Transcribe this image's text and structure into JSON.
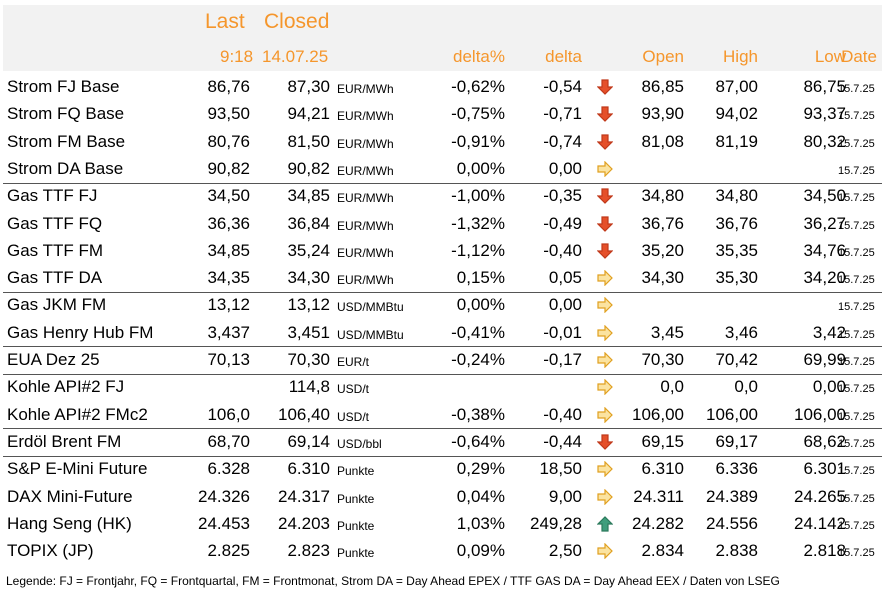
{
  "header": {
    "top": {
      "last": "Last",
      "closed": "Closed"
    },
    "columns": {
      "last": "9:18",
      "closed": "14.07.25",
      "delta_pct": "delta%",
      "delta": "delta",
      "open": "Open",
      "high": "High",
      "low": "Low",
      "date": "Date"
    }
  },
  "groups": [
    [
      {
        "name": "Strom FJ Base",
        "last": "86,76",
        "closed": "87,30",
        "unit": "EUR/MWh",
        "delta_pct": "-0,62%",
        "delta": "-0,54",
        "arrow": "down",
        "open": "86,85",
        "high": "87,00",
        "low": "86,75",
        "date": "15.7.25"
      },
      {
        "name": "Strom FQ Base",
        "last": "93,50",
        "closed": "94,21",
        "unit": "EUR/MWh",
        "delta_pct": "-0,75%",
        "delta": "-0,71",
        "arrow": "down",
        "open": "93,90",
        "high": "94,02",
        "low": "93,37",
        "date": "15.7.25"
      },
      {
        "name": "Strom FM Base",
        "last": "80,76",
        "closed": "81,50",
        "unit": "EUR/MWh",
        "delta_pct": "-0,91%",
        "delta": "-0,74",
        "arrow": "down",
        "open": "81,08",
        "high": "81,19",
        "low": "80,32",
        "date": "15.7.25"
      },
      {
        "name": "Strom DA Base",
        "last": "90,82",
        "closed": "90,82",
        "unit": "EUR/MWh",
        "delta_pct": "0,00%",
        "delta": "0,00",
        "arrow": "right",
        "open": null,
        "high": null,
        "low": null,
        "date": "15.7.25"
      }
    ],
    [
      {
        "name": "Gas TTF FJ",
        "last": "34,50",
        "closed": "34,85",
        "unit": "EUR/MWh",
        "delta_pct": "-1,00%",
        "delta": "-0,35",
        "arrow": "down",
        "open": "34,80",
        "high": "34,80",
        "low": "34,50",
        "date": "15.7.25"
      },
      {
        "name": "Gas TTF FQ",
        "last": "36,36",
        "closed": "36,84",
        "unit": "EUR/MWh",
        "delta_pct": "-1,32%",
        "delta": "-0,49",
        "arrow": "down",
        "open": "36,76",
        "high": "36,76",
        "low": "36,27",
        "date": "15.7.25"
      },
      {
        "name": "Gas TTF FM",
        "last": "34,85",
        "closed": "35,24",
        "unit": "EUR/MWh",
        "delta_pct": "-1,12%",
        "delta": "-0,40",
        "arrow": "down",
        "open": "35,20",
        "high": "35,35",
        "low": "34,76",
        "date": "15.7.25"
      },
      {
        "name": "Gas TTF DA",
        "last": "34,35",
        "closed": "34,30",
        "unit": "EUR/MWh",
        "delta_pct": "0,15%",
        "delta": "0,05",
        "arrow": "right",
        "open": "34,30",
        "high": "35,30",
        "low": "34,20",
        "date": "15.7.25"
      }
    ],
    [
      {
        "name": "Gas JKM FM",
        "last": "13,12",
        "closed": "13,12",
        "unit": "USD/MMBtu",
        "delta_pct": "0,00%",
        "delta": "0,00",
        "arrow": "right",
        "open": null,
        "high": null,
        "low": null,
        "date": "15.7.25"
      },
      {
        "name": "Gas Henry Hub FM",
        "last": "3,437",
        "closed": "3,451",
        "unit": "USD/MMBtu",
        "delta_pct": "-0,41%",
        "delta": "-0,01",
        "arrow": "right",
        "open": "3,45",
        "high": "3,46",
        "low": "3,42",
        "date": "15.7.25"
      }
    ],
    [
      {
        "name": "EUA Dez 25",
        "last": "70,13",
        "closed": "70,30",
        "unit": "EUR/t",
        "delta_pct": "-0,24%",
        "delta": "-0,17",
        "arrow": "right",
        "open": "70,30",
        "high": "70,42",
        "low": "69,99",
        "date": "15.7.25"
      }
    ],
    [
      {
        "name": "Kohle API#2 FJ",
        "last": null,
        "closed": "114,8",
        "unit": "USD/t",
        "delta_pct": null,
        "delta": null,
        "arrow": "right",
        "open": "0,0",
        "high": "0,0",
        "low": "0,00",
        "date": "15.7.25"
      },
      {
        "name": "Kohle API#2 FMc2",
        "last": "106,0",
        "closed": "106,40",
        "unit": "USD/t",
        "delta_pct": "-0,38%",
        "delta": "-0,40",
        "arrow": "right",
        "open": "106,00",
        "high": "106,00",
        "low": "106,00",
        "date": "15.7.25"
      }
    ],
    [
      {
        "name": "Erdöl Brent FM",
        "last": "68,70",
        "closed": "69,14",
        "unit": "USD/bbl",
        "delta_pct": "-0,64%",
        "delta": "-0,44",
        "arrow": "down",
        "open": "69,15",
        "high": "69,17",
        "low": "68,62",
        "date": "15.7.25"
      }
    ],
    [
      {
        "name": "S&P E-Mini Future",
        "last": "6.328",
        "closed": "6.310",
        "unit": "Punkte",
        "delta_pct": "0,29%",
        "delta": "18,50",
        "arrow": "right",
        "open": "6.310",
        "high": "6.336",
        "low": "6.301",
        "date": "15.7.25"
      },
      {
        "name": "DAX Mini-Future",
        "last": "24.326",
        "closed": "24.317",
        "unit": "Punkte",
        "delta_pct": "0,04%",
        "delta": "9,00",
        "arrow": "right",
        "open": "24.311",
        "high": "24.389",
        "low": "24.265",
        "date": "15.7.25"
      },
      {
        "name": "Hang Seng (HK)",
        "last": "24.453",
        "closed": "24.203",
        "unit": "Punkte",
        "delta_pct": "1,03%",
        "delta": "249,28",
        "arrow": "up",
        "open": "24.282",
        "high": "24.556",
        "low": "24.142",
        "date": "15.7.25"
      },
      {
        "name": "TOPIX (JP)",
        "last": "2.825",
        "closed": "2.823",
        "unit": "Punkte",
        "delta_pct": "0,09%",
        "delta": "2,50",
        "arrow": "right",
        "open": "2.834",
        "high": "2.838",
        "low": "2.818",
        "date": "15.7.25"
      }
    ]
  ],
  "legend": "Legende: FJ = Frontjahr, FQ = Frontquartal, FM = Frontmonat, Strom DA = Day Ahead EPEX / TTF GAS DA = Day Ahead EEX / Daten von LSEG"
}
